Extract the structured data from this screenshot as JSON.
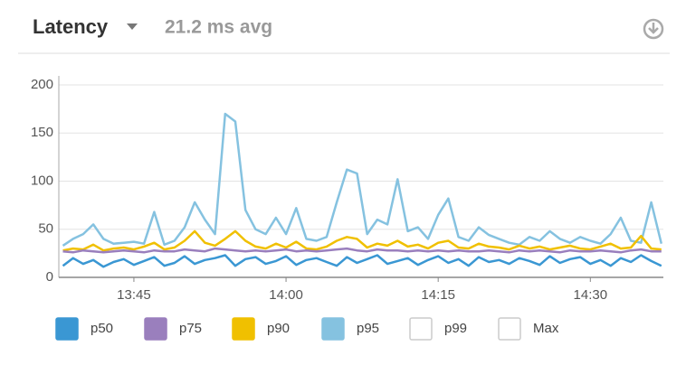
{
  "chart_data": {
    "type": "line",
    "title": "Latency",
    "subtitle": "21.2 ms avg",
    "x": [
      818,
      819,
      820,
      821,
      822,
      823,
      824,
      825,
      826,
      827,
      828,
      829,
      830,
      831,
      832,
      833,
      834,
      835,
      836,
      837,
      838,
      839,
      840,
      841,
      842,
      843,
      844,
      845,
      846,
      847,
      848,
      849,
      850,
      851,
      852,
      853,
      854,
      855,
      856,
      857,
      858,
      859,
      860,
      861,
      862,
      863,
      864,
      865,
      866,
      867,
      868,
      869,
      870,
      871,
      872,
      873,
      874,
      875,
      876,
      877
    ],
    "xlim": [
      817.6,
      877.2
    ],
    "xticks": [
      {
        "value": 825,
        "label": "13:45"
      },
      {
        "value": 840,
        "label": "14:00"
      },
      {
        "value": 855,
        "label": "14:15"
      },
      {
        "value": 870,
        "label": "14:30"
      }
    ],
    "ylim": [
      0,
      200
    ],
    "yticks": [
      0,
      50,
      100,
      150,
      200
    ],
    "grid": true,
    "series": [
      {
        "name": "p50",
        "color": "#3a97d3",
        "enabled": true,
        "values": [
          12,
          20,
          14,
          18,
          11,
          16,
          19,
          13,
          17,
          21,
          12,
          15,
          22,
          14,
          18,
          20,
          23,
          12,
          19,
          21,
          14,
          17,
          22,
          13,
          18,
          20,
          16,
          12,
          21,
          15,
          19,
          23,
          14,
          17,
          20,
          13,
          18,
          22,
          15,
          19,
          12,
          21,
          16,
          18,
          14,
          20,
          17,
          13,
          22,
          15,
          19,
          21,
          14,
          18,
          12,
          20,
          16,
          23,
          17,
          12
        ]
      },
      {
        "name": "p75",
        "color": "#9a7fbd",
        "enabled": true,
        "values": [
          27,
          26,
          28,
          27,
          26,
          27,
          28,
          27,
          26,
          28,
          27,
          27,
          29,
          28,
          27,
          30,
          29,
          28,
          27,
          28,
          27,
          28,
          29,
          27,
          28,
          27,
          28,
          29,
          30,
          28,
          27,
          29,
          28,
          28,
          27,
          28,
          27,
          28,
          27,
          28,
          27,
          27,
          28,
          27,
          26,
          28,
          27,
          28,
          27,
          26,
          28,
          27,
          27,
          28,
          27,
          26,
          28,
          29,
          27,
          27
        ]
      },
      {
        "name": "p90",
        "color": "#f0c000",
        "enabled": true,
        "values": [
          28,
          30,
          29,
          34,
          28,
          30,
          31,
          29,
          32,
          36,
          29,
          31,
          38,
          48,
          36,
          33,
          40,
          48,
          38,
          32,
          30,
          35,
          31,
          37,
          30,
          29,
          32,
          38,
          42,
          40,
          31,
          35,
          33,
          38,
          32,
          34,
          30,
          36,
          38,
          31,
          30,
          35,
          32,
          31,
          29,
          33,
          30,
          32,
          29,
          31,
          33,
          30,
          29,
          32,
          35,
          30,
          31,
          43,
          30,
          29
        ]
      },
      {
        "name": "p95",
        "color": "#85c2e0",
        "enabled": true,
        "values": [
          33,
          40,
          45,
          55,
          40,
          35,
          36,
          37,
          35,
          68,
          34,
          38,
          52,
          78,
          60,
          45,
          170,
          162,
          70,
          50,
          45,
          62,
          45,
          72,
          40,
          38,
          42,
          78,
          112,
          108,
          45,
          60,
          55,
          102,
          48,
          52,
          40,
          65,
          82,
          42,
          38,
          52,
          44,
          40,
          36,
          34,
          42,
          38,
          48,
          40,
          36,
          42,
          38,
          35,
          45,
          62,
          38,
          36,
          78,
          35
        ]
      },
      {
        "name": "p99",
        "enabled": false
      },
      {
        "name": "Max",
        "enabled": false
      }
    ]
  }
}
